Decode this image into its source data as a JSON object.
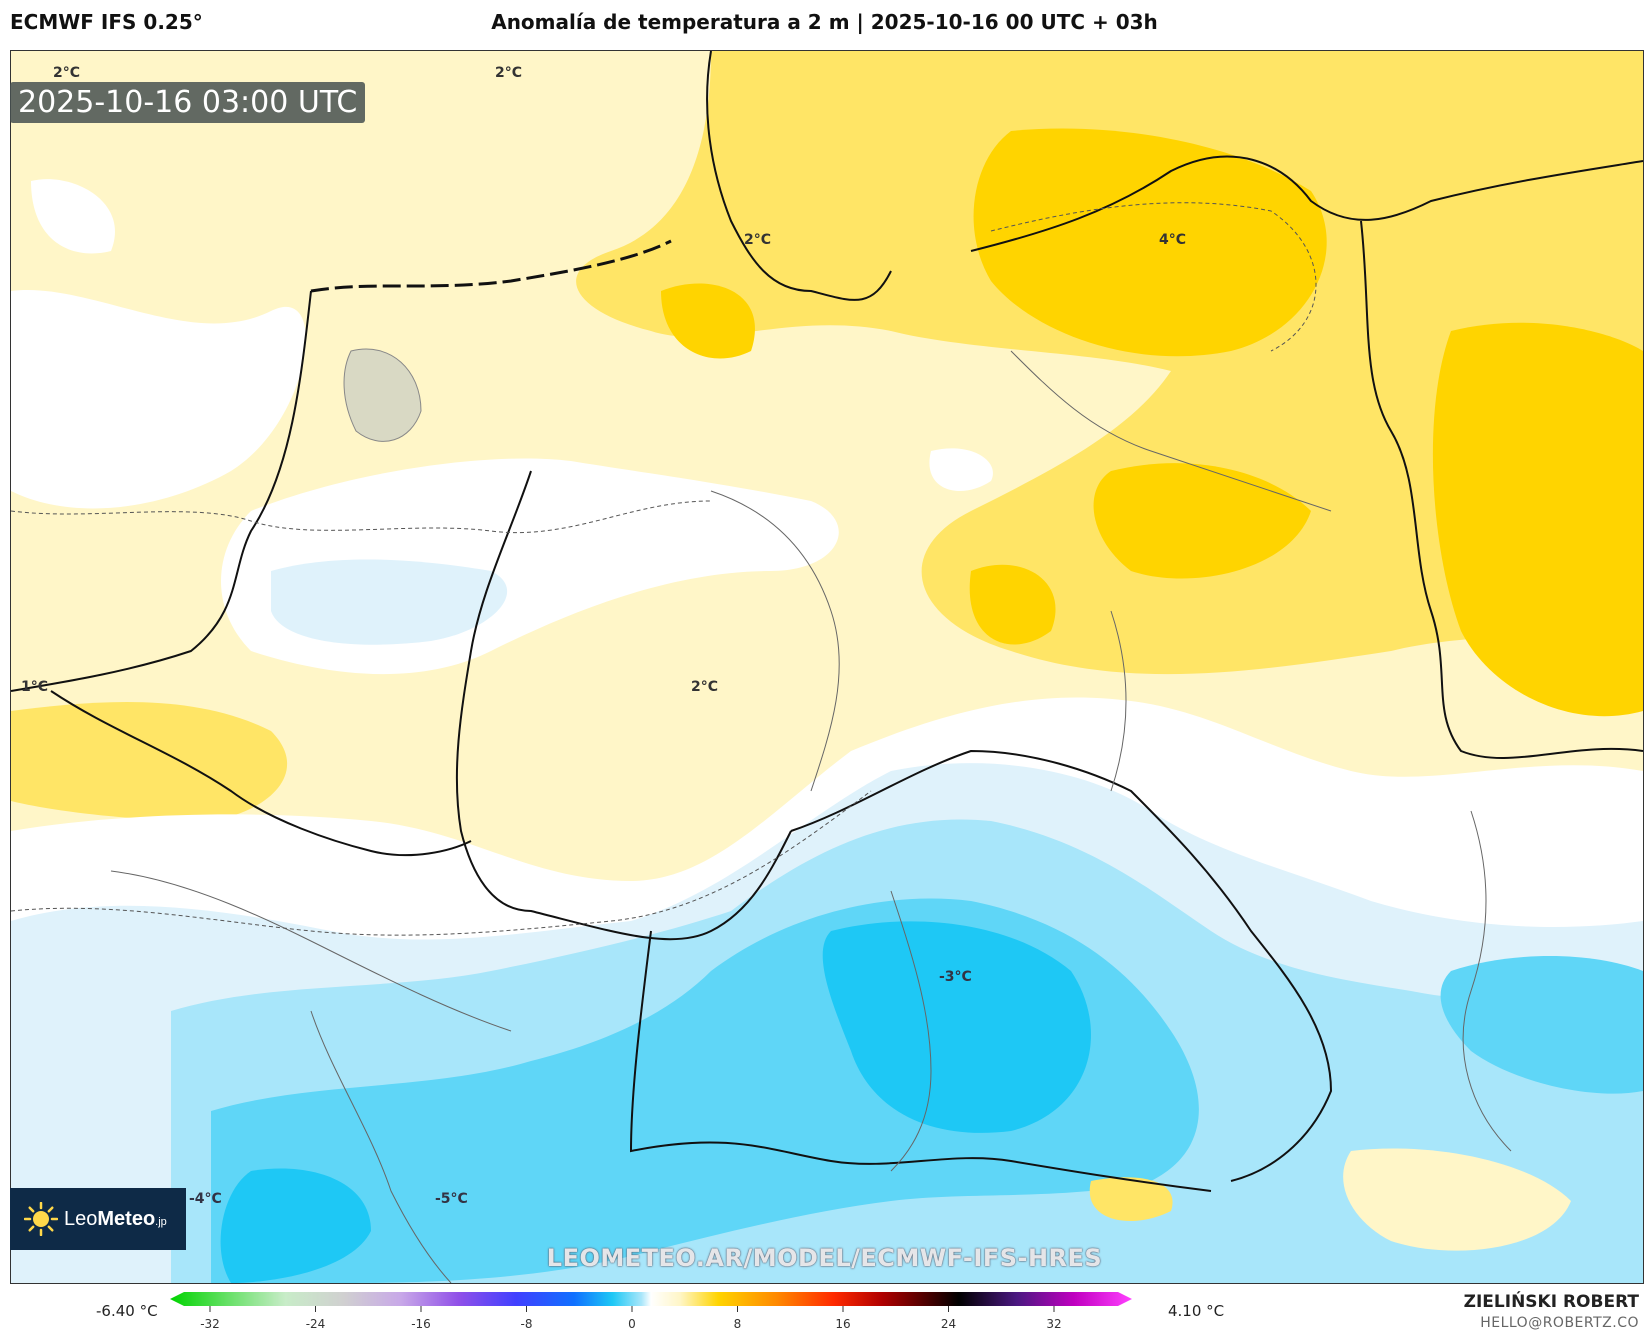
{
  "header": {
    "model": "ECMWF IFS 0.25°",
    "title": "Anomalía de temperatura a 2 m | 2025-10-16 00 UTC + 03h"
  },
  "map": {
    "timestamp": "2025-10-16 03:00 UTC",
    "contour_labels": [
      "2°C",
      "2°C",
      "2°C",
      "4°C",
      "1°C",
      "2°C",
      "-3°C",
      "-4°C",
      "-5°C"
    ],
    "watermark": "LEOMETEO.AR/MODEL/ECMWF-IFS-HRES",
    "logo": {
      "prefix": "Leo",
      "strong": "Meteo",
      "suffix": ".jp"
    }
  },
  "legend": {
    "min_label": "-6.40 °C",
    "max_label": "4.10 °C",
    "ticks": [
      "-32",
      "-24",
      "-16",
      "-8",
      "0",
      "8",
      "16",
      "24",
      "32"
    ]
  },
  "credit": {
    "name": "ZIELIŃSKI ROBERT",
    "email": "HELLO@ROBERTZ.CO"
  },
  "colors": {
    "warm_light": "#fff6c8",
    "warm_mid": "#ffe566",
    "warm_strong": "#ffd400",
    "neutral": "#ffffff",
    "cool_light": "#dff2fb",
    "cool_mid": "#a8e6fa",
    "cool_strong": "#5fd6f7",
    "cool_deep": "#1ec8f5",
    "logo_bg": "#0e2a47"
  }
}
